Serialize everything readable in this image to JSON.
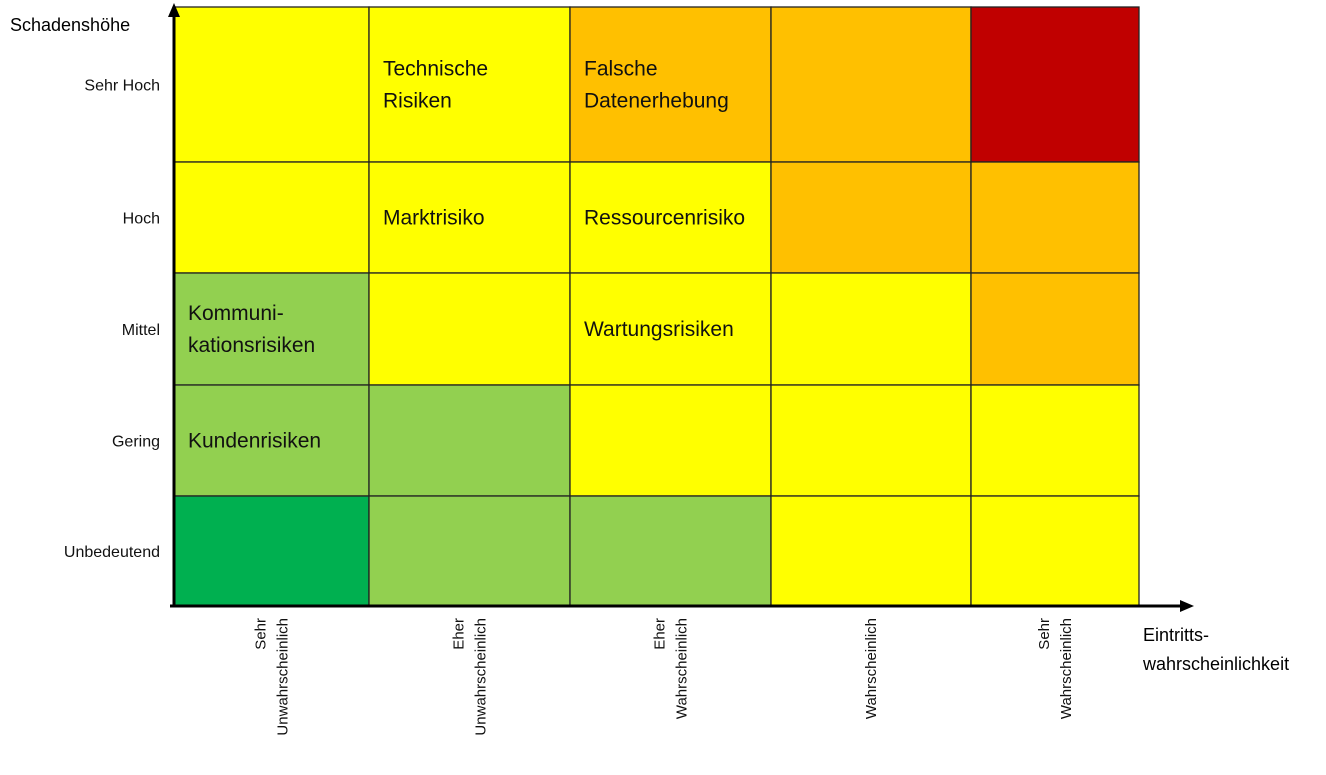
{
  "chart_data": {
    "type": "heatmap",
    "ylabel": "Schadenshöhe",
    "xlabel_lines": [
      "Eintritts-",
      "wahrscheinlichkeit"
    ],
    "x_categories": [
      {
        "lines": [
          "Sehr",
          "Unwahrscheinlich"
        ]
      },
      {
        "lines": [
          "Eher",
          "Unwahrscheinlich"
        ]
      },
      {
        "lines": [
          "Eher",
          "Wahrscheinlich"
        ]
      },
      {
        "lines": [
          "Wahrscheinlich"
        ]
      },
      {
        "lines": [
          "Sehr",
          "Wahrscheinlich"
        ]
      }
    ],
    "y_categories": [
      "Sehr Hoch",
      "Hoch",
      "Mittel",
      "Gering",
      "Unbedeutend"
    ],
    "colors": {
      "dark_green": "#00b050",
      "light_green": "#92d050",
      "yellow": "#ffff00",
      "orange": "#ffc000",
      "red": "#c00000"
    },
    "cells": [
      [
        "yellow",
        "yellow",
        "orange",
        "orange",
        "red"
      ],
      [
        "yellow",
        "yellow",
        "yellow",
        "orange",
        "orange"
      ],
      [
        "light_green",
        "yellow",
        "yellow",
        "yellow",
        "orange"
      ],
      [
        "light_green",
        "light_green",
        "yellow",
        "yellow",
        "yellow"
      ],
      [
        "dark_green",
        "light_green",
        "light_green",
        "yellow",
        "yellow"
      ]
    ],
    "risks": [
      {
        "row": 0,
        "col": 1,
        "lines": [
          "Technische",
          "Risiken"
        ]
      },
      {
        "row": 0,
        "col": 2,
        "lines": [
          "Falsche",
          "Datenerhebung"
        ]
      },
      {
        "row": 1,
        "col": 1,
        "lines": [
          "Marktrisiko"
        ]
      },
      {
        "row": 1,
        "col": 2,
        "lines": [
          "Ressourcenrisiko"
        ]
      },
      {
        "row": 2,
        "col": 0,
        "lines": [
          "Kommuni-",
          "kationsrisiken"
        ]
      },
      {
        "row": 2,
        "col": 2,
        "lines": [
          "Wartungsrisiken"
        ]
      },
      {
        "row": 3,
        "col": 0,
        "lines": [
          "Kundenrisiken"
        ]
      }
    ]
  }
}
